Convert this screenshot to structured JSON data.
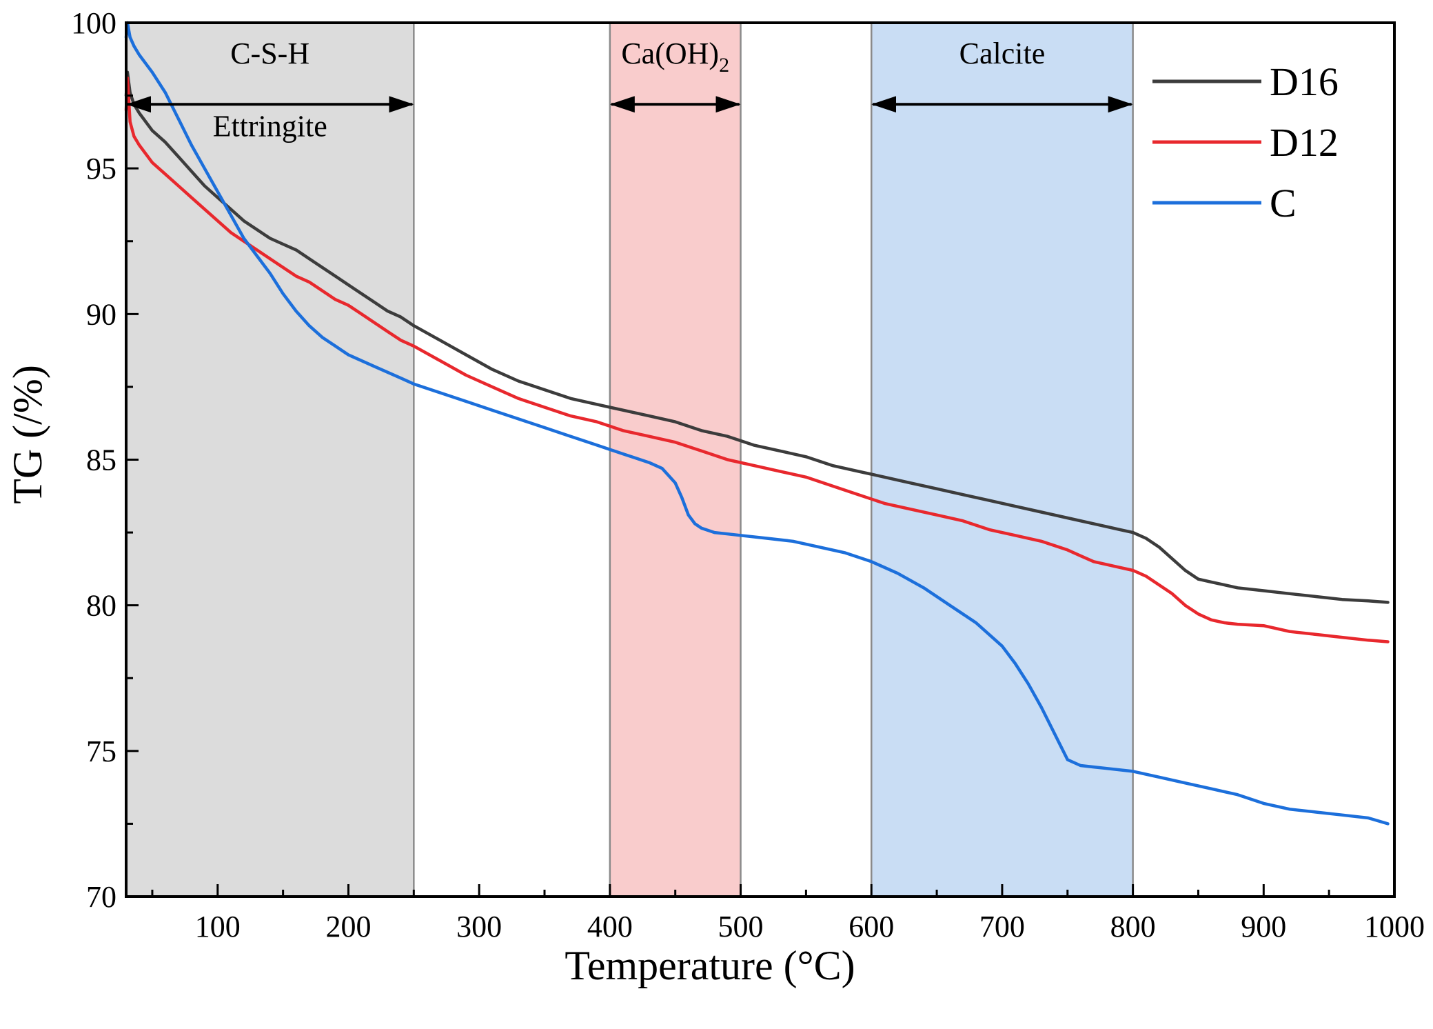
{
  "chart_data": {
    "type": "line",
    "title": "",
    "xlabel": "Temperature (°C)",
    "ylabel": "TG (/%)",
    "xlim": [
      30,
      1000
    ],
    "ylim": [
      70,
      100
    ],
    "xticks": [
      100,
      200,
      300,
      400,
      500,
      600,
      700,
      800,
      900,
      1000
    ],
    "xtick_labels": [
      "100",
      "200",
      "300",
      "400",
      "500",
      "600",
      "700",
      "800",
      "900",
      "1000"
    ],
    "yticks": [
      70,
      75,
      80,
      85,
      90,
      95,
      100
    ],
    "ytick_labels": [
      "70",
      "75",
      "80",
      "85",
      "90",
      "95",
      "100"
    ],
    "regions": [
      {
        "name": "C-S-H / Ettringite",
        "x_start": 30,
        "x_end": 250,
        "color": "#dcdcdc",
        "labels": [
          {
            "text": "C-S-H",
            "x": 140,
            "y": 98.6
          },
          {
            "text": "Ettringite",
            "x": 140,
            "y": 96.1
          }
        ],
        "arrow": {
          "x1": 30,
          "x2": 250,
          "y": 97.2
        }
      },
      {
        "name": "Ca(OH)2",
        "x_start": 400,
        "x_end": 500,
        "color": "#f9cccc",
        "labels": [
          {
            "text": "Ca(OH)",
            "sub": "2",
            "x": 450,
            "y": 98.6
          }
        ],
        "arrow": {
          "x1": 400,
          "x2": 500,
          "y": 97.2
        }
      },
      {
        "name": "Calcite",
        "x_start": 600,
        "x_end": 800,
        "color": "#c9ddf4",
        "labels": [
          {
            "text": "Calcite",
            "x": 700,
            "y": 98.6
          }
        ],
        "arrow": {
          "x1": 600,
          "x2": 800,
          "y": 97.2
        }
      }
    ],
    "legend": {
      "position": "top-right"
    },
    "series": [
      {
        "name": "D16",
        "color": "#3c3c3c",
        "x": [
          30,
          31,
          33,
          36,
          40,
          50,
          60,
          70,
          80,
          90,
          100,
          110,
          120,
          130,
          140,
          150,
          160,
          170,
          180,
          190,
          200,
          210,
          220,
          230,
          240,
          250,
          270,
          290,
          310,
          330,
          350,
          370,
          390,
          410,
          430,
          450,
          470,
          490,
          510,
          530,
          550,
          570,
          590,
          610,
          630,
          650,
          670,
          690,
          710,
          730,
          750,
          770,
          790,
          800,
          810,
          820,
          830,
          840,
          850,
          860,
          870,
          880,
          900,
          920,
          940,
          960,
          980,
          995
        ],
        "y": [
          97.5,
          98.3,
          97.6,
          97.2,
          96.9,
          96.3,
          95.9,
          95.4,
          94.9,
          94.4,
          94.0,
          93.6,
          93.2,
          92.9,
          92.6,
          92.4,
          92.2,
          91.9,
          91.6,
          91.3,
          91.0,
          90.7,
          90.4,
          90.1,
          89.9,
          89.6,
          89.1,
          88.6,
          88.1,
          87.7,
          87.4,
          87.1,
          86.9,
          86.7,
          86.5,
          86.3,
          86.0,
          85.8,
          85.5,
          85.3,
          85.1,
          84.8,
          84.6,
          84.4,
          84.2,
          84.0,
          83.8,
          83.6,
          83.4,
          83.2,
          83.0,
          82.8,
          82.6,
          82.5,
          82.3,
          82.0,
          81.6,
          81.2,
          80.9,
          80.8,
          80.7,
          80.6,
          80.5,
          80.4,
          80.3,
          80.2,
          80.15,
          80.1
        ]
      },
      {
        "name": "D12",
        "color": "#e8282d",
        "x": [
          30,
          31,
          33,
          36,
          40,
          50,
          60,
          70,
          80,
          90,
          100,
          110,
          120,
          130,
          140,
          150,
          160,
          170,
          180,
          190,
          200,
          210,
          220,
          230,
          240,
          250,
          270,
          290,
          310,
          330,
          350,
          370,
          390,
          410,
          430,
          450,
          470,
          490,
          510,
          530,
          550,
          570,
          590,
          610,
          630,
          650,
          670,
          690,
          710,
          730,
          750,
          760,
          770,
          790,
          800,
          810,
          820,
          830,
          840,
          850,
          860,
          870,
          880,
          900,
          920,
          940,
          960,
          980,
          995
        ],
        "y": [
          97.0,
          98.1,
          96.6,
          96.1,
          95.8,
          95.2,
          94.8,
          94.4,
          94.0,
          93.6,
          93.2,
          92.8,
          92.5,
          92.2,
          91.9,
          91.6,
          91.3,
          91.1,
          90.8,
          90.5,
          90.3,
          90.0,
          89.7,
          89.4,
          89.1,
          88.9,
          88.4,
          87.9,
          87.5,
          87.1,
          86.8,
          86.5,
          86.3,
          86.0,
          85.8,
          85.6,
          85.3,
          85.0,
          84.8,
          84.6,
          84.4,
          84.1,
          83.8,
          83.5,
          83.3,
          83.1,
          82.9,
          82.6,
          82.4,
          82.2,
          81.9,
          81.7,
          81.5,
          81.3,
          81.2,
          81.0,
          80.7,
          80.4,
          80.0,
          79.7,
          79.5,
          79.4,
          79.35,
          79.3,
          79.1,
          79.0,
          78.9,
          78.8,
          78.75
        ]
      },
      {
        "name": "C",
        "color": "#1c6fdb",
        "x": [
          30,
          31,
          33,
          36,
          40,
          50,
          60,
          70,
          80,
          90,
          100,
          110,
          120,
          130,
          140,
          150,
          160,
          170,
          180,
          190,
          200,
          210,
          220,
          230,
          240,
          250,
          270,
          290,
          310,
          330,
          350,
          370,
          390,
          410,
          420,
          430,
          440,
          450,
          455,
          460,
          465,
          470,
          480,
          490,
          500,
          520,
          540,
          560,
          580,
          600,
          620,
          640,
          660,
          680,
          700,
          710,
          720,
          730,
          740,
          750,
          760,
          770,
          780,
          800,
          820,
          840,
          860,
          880,
          900,
          920,
          940,
          960,
          980,
          995
        ],
        "y": [
          99.5,
          100.0,
          99.5,
          99.2,
          98.9,
          98.3,
          97.6,
          96.7,
          95.8,
          95.0,
          94.2,
          93.4,
          92.6,
          92.0,
          91.4,
          90.7,
          90.1,
          89.6,
          89.2,
          88.9,
          88.6,
          88.4,
          88.2,
          88.0,
          87.8,
          87.6,
          87.3,
          87.0,
          86.7,
          86.4,
          86.1,
          85.8,
          85.5,
          85.2,
          85.05,
          84.9,
          84.7,
          84.2,
          83.7,
          83.1,
          82.8,
          82.65,
          82.5,
          82.45,
          82.4,
          82.3,
          82.2,
          82.0,
          81.8,
          81.5,
          81.1,
          80.6,
          80.0,
          79.4,
          78.6,
          78.0,
          77.3,
          76.5,
          75.6,
          74.7,
          74.5,
          74.45,
          74.4,
          74.3,
          74.1,
          73.9,
          73.7,
          73.5,
          73.2,
          73.0,
          72.9,
          72.8,
          72.7,
          72.5
        ]
      }
    ]
  }
}
